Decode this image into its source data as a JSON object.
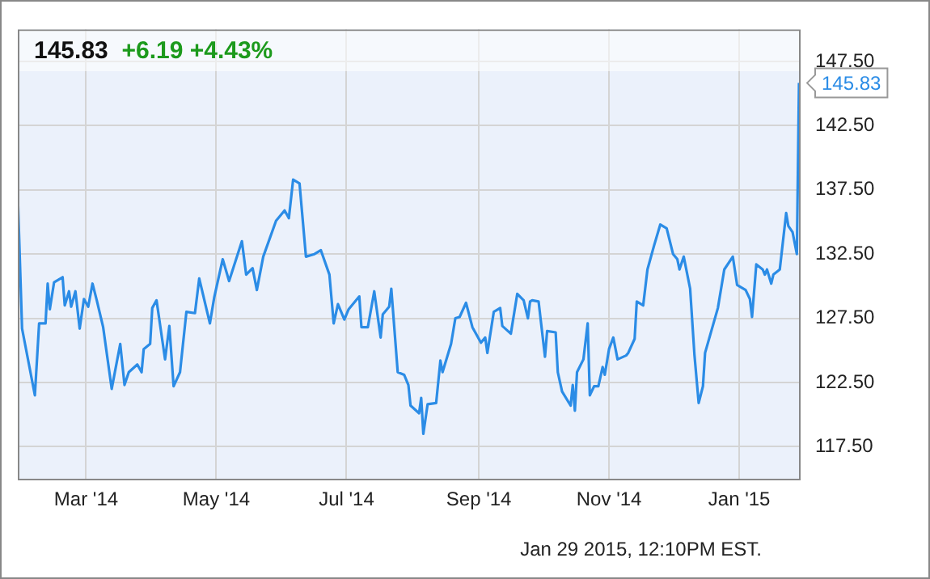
{
  "chart_data": {
    "type": "line",
    "title": "145.83",
    "subtitle": "+6.19 +4.43%",
    "annotations": [
      "Jan 29 2015, 12:10PM EST."
    ],
    "x": [
      "2014-01-28",
      "2014-01-30",
      "2014-02-05",
      "2014-02-07",
      "2014-02-10",
      "2014-02-11",
      "2014-02-12",
      "2014-02-14",
      "2014-02-18",
      "2014-02-19",
      "2014-02-21",
      "2014-02-22",
      "2014-02-24",
      "2014-02-26",
      "2014-02-28",
      "2014-03-02",
      "2014-03-04",
      "2014-03-06",
      "2014-03-09",
      "2014-03-13",
      "2014-03-17",
      "2014-03-19",
      "2014-03-21",
      "2014-03-25",
      "2014-03-27",
      "2014-03-28",
      "2014-03-31",
      "2014-04-01",
      "2014-04-03",
      "2014-04-07",
      "2014-04-09",
      "2014-04-11",
      "2014-04-14",
      "2014-04-17",
      "2014-04-21",
      "2014-04-23",
      "2014-04-28",
      "2014-04-30",
      "2014-05-04",
      "2014-05-07",
      "2014-05-13",
      "2014-05-15",
      "2014-05-18",
      "2014-05-20",
      "2014-05-23",
      "2014-05-29",
      "2014-06-02",
      "2014-06-04",
      "2014-06-06",
      "2014-06-09",
      "2014-06-12",
      "2014-06-16",
      "2014-06-19",
      "2014-06-23",
      "2014-06-25",
      "2014-06-27",
      "2014-06-30",
      "2014-07-02",
      "2014-07-07",
      "2014-07-08",
      "2014-07-11",
      "2014-07-14",
      "2014-07-17",
      "2014-07-18",
      "2014-07-21",
      "2014-07-22",
      "2014-07-25",
      "2014-07-28",
      "2014-07-30",
      "2014-07-31",
      "2014-08-04",
      "2014-08-05",
      "2014-08-06",
      "2014-08-08",
      "2014-08-12",
      "2014-08-14",
      "2014-08-15",
      "2014-08-19",
      "2014-08-21",
      "2014-08-23",
      "2014-08-26",
      "2014-08-29",
      "2014-09-02",
      "2014-09-04",
      "2014-09-05",
      "2014-09-08",
      "2014-09-11",
      "2014-09-12",
      "2014-09-16",
      "2014-09-19",
      "2014-09-22",
      "2014-09-24",
      "2014-09-25",
      "2014-09-26",
      "2014-09-29",
      "2014-10-02",
      "2014-10-03",
      "2014-10-07",
      "2014-10-08",
      "2014-10-10",
      "2014-10-14",
      "2014-10-15",
      "2014-10-16",
      "2014-10-17",
      "2014-10-20",
      "2014-10-22",
      "2014-10-23",
      "2014-10-25",
      "2014-10-27",
      "2014-10-29",
      "2014-10-30",
      "2014-11-01",
      "2014-11-03",
      "2014-11-05",
      "2014-11-09",
      "2014-11-10",
      "2014-11-13",
      "2014-11-14",
      "2014-11-17",
      "2014-11-19",
      "2014-11-20",
      "2014-11-22",
      "2014-11-25",
      "2014-11-28",
      "2014-12-01",
      "2014-12-03",
      "2014-12-04",
      "2014-12-06",
      "2014-12-09",
      "2014-12-11",
      "2014-12-13",
      "2014-12-15",
      "2014-12-16",
      "2014-12-22",
      "2014-12-25",
      "2014-12-29",
      "2014-12-31",
      "2015-01-04",
      "2015-01-06",
      "2015-01-07",
      "2015-01-09",
      "2015-01-12",
      "2015-01-13",
      "2015-01-14",
      "2015-01-16",
      "2015-01-17",
      "2015-01-20",
      "2015-01-23",
      "2015-01-24",
      "2015-01-26",
      "2015-01-28",
      "2015-01-29"
    ],
    "series": [
      {
        "color": "#2b8ce6",
        "values": [
          137.1,
          126.7,
          121.5,
          127.1,
          127.1,
          130.2,
          128.2,
          130.3,
          130.7,
          128.5,
          129.6,
          128.4,
          129.6,
          126.7,
          129.0,
          128.4,
          130.2,
          128.9,
          126.8,
          122.0,
          125.5,
          122.3,
          123.3,
          123.9,
          123.3,
          125.1,
          125.5,
          128.3,
          128.9,
          124.3,
          126.9,
          122.2,
          123.3,
          128.0,
          127.9,
          130.6,
          127.1,
          129.1,
          132.1,
          130.4,
          133.5,
          130.9,
          131.4,
          129.7,
          132.3,
          135.1,
          135.9,
          135.3,
          138.3,
          138.0,
          132.3,
          132.5,
          132.8,
          130.9,
          127.1,
          128.6,
          127.4,
          128.2,
          129.2,
          126.8,
          126.8,
          129.6,
          126.0,
          127.8,
          128.4,
          129.8,
          123.3,
          123.1,
          122.3,
          120.7,
          120.1,
          121.3,
          118.5,
          120.8,
          120.9,
          124.2,
          123.3,
          125.5,
          127.5,
          127.6,
          128.7,
          126.8,
          125.6,
          126.0,
          124.8,
          128.0,
          128.3,
          126.9,
          126.3,
          129.4,
          128.9,
          127.5,
          128.8,
          128.9,
          128.8,
          124.5,
          126.5,
          126.4,
          123.3,
          121.8,
          120.7,
          122.3,
          120.3,
          123.3,
          124.3,
          127.1,
          121.5,
          122.2,
          122.2,
          123.7,
          123.1,
          125.1,
          126.0,
          124.3,
          124.6,
          124.8,
          125.9,
          128.8,
          128.5,
          131.3,
          131.9,
          133.1,
          134.8,
          134.5,
          132.5,
          132.1,
          131.3,
          132.3,
          129.8,
          124.7,
          120.9,
          122.2,
          124.8,
          128.3,
          131.3,
          132.3,
          130.1,
          129.7,
          129.0,
          127.6,
          131.7,
          131.3,
          130.9,
          131.3,
          130.2,
          130.9,
          131.3,
          135.7,
          134.7,
          134.2,
          132.5,
          145.83
        ],
        "value_labels": [
          null,
          null,
          null,
          null,
          null,
          null,
          null,
          null,
          null,
          null,
          null,
          null,
          null,
          null,
          null,
          null,
          null,
          null,
          null,
          null,
          null,
          null,
          null,
          null,
          null,
          null,
          null,
          null,
          null,
          null,
          null,
          null,
          null,
          null,
          null,
          null,
          null,
          null,
          null,
          null,
          null,
          null,
          null,
          null,
          null,
          null,
          null,
          null,
          null,
          null,
          null,
          null,
          null,
          null,
          null,
          null,
          null,
          null,
          null,
          null,
          null,
          null,
          null,
          null,
          null,
          null,
          null,
          null,
          null,
          null,
          null,
          null,
          null,
          null,
          null,
          null,
          null,
          null,
          null,
          null,
          null,
          null,
          null,
          null,
          null,
          null,
          null,
          null,
          null,
          null,
          null,
          null,
          null,
          null,
          null,
          null,
          null,
          null,
          null,
          null,
          null,
          null,
          null,
          null,
          null,
          null,
          null,
          null,
          null,
          null,
          null,
          null,
          null,
          null,
          null,
          null,
          null,
          null,
          null,
          null,
          null,
          null,
          null,
          null,
          null,
          null,
          null,
          null,
          null,
          null,
          null,
          null,
          null,
          null,
          null,
          null,
          null,
          null,
          null,
          null,
          null,
          null,
          null,
          null,
          null,
          null,
          null,
          null,
          null,
          null,
          null,
          "145.83"
        ]
      }
    ],
    "xlim": [
      "2014-01-28",
      "2015-01-29"
    ],
    "xticks": [
      {
        "value": "2014-03-01",
        "label": "Mar '14"
      },
      {
        "value": "2014-05-01",
        "label": "May '14"
      },
      {
        "value": "2014-07-01",
        "label": "Jul '14"
      },
      {
        "value": "2014-09-01",
        "label": "Sep '14"
      },
      {
        "value": "2014-11-01",
        "label": "Nov '14"
      },
      {
        "value": "2015-01-01",
        "label": "Jan '15"
      }
    ],
    "ylim": [
      115,
      150
    ],
    "yticks": [
      {
        "value": 117.5,
        "label": "117.50"
      },
      {
        "value": 122.5,
        "label": "122.50"
      },
      {
        "value": 127.5,
        "label": "127.50"
      },
      {
        "value": 132.5,
        "label": "132.50"
      },
      {
        "value": 137.5,
        "label": "137.50"
      },
      {
        "value": 142.5,
        "label": "142.50"
      },
      {
        "value": 147.5,
        "label": "147.50"
      }
    ],
    "grid": true,
    "legend": false,
    "marker": "none",
    "line_style": "solid"
  }
}
